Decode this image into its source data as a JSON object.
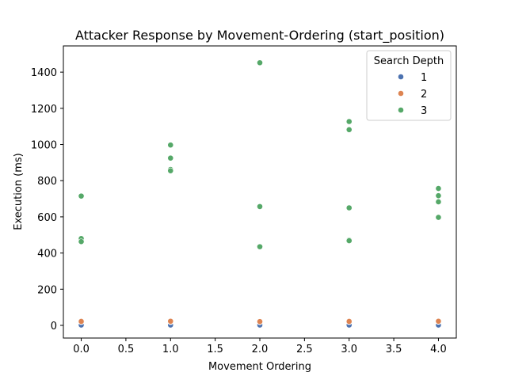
{
  "chart_data": {
    "type": "scatter",
    "title": "Attacker Response by Movement-Ordering (start_position)",
    "xlabel": "Movement Ordering",
    "ylabel": "Execution (ms)",
    "xlim": [
      -0.2,
      4.2
    ],
    "ylim": [
      -70,
      1545
    ],
    "xticks": [
      0.0,
      0.5,
      1.0,
      1.5,
      2.0,
      2.5,
      3.0,
      3.5,
      4.0
    ],
    "xtick_labels": [
      "0.0",
      "0.5",
      "1.0",
      "1.5",
      "2.0",
      "2.5",
      "3.0",
      "3.5",
      "4.0"
    ],
    "yticks": [
      0,
      200,
      400,
      600,
      800,
      1000,
      1200,
      1400
    ],
    "ytick_labels": [
      "0",
      "200",
      "400",
      "600",
      "800",
      "1000",
      "1200",
      "1400"
    ],
    "grid": false,
    "legend": {
      "title": "Search Depth",
      "placement": "top-right"
    },
    "series": [
      {
        "name": "1",
        "color": "#4c72b0",
        "points": [
          [
            0,
            1
          ],
          [
            0,
            2
          ],
          [
            1,
            1
          ],
          [
            1,
            2
          ],
          [
            2,
            1
          ],
          [
            2,
            2
          ],
          [
            3,
            1
          ],
          [
            3,
            2
          ],
          [
            4,
            1
          ],
          [
            4,
            2
          ]
        ]
      },
      {
        "name": "2",
        "color": "#dd8452",
        "points": [
          [
            0,
            20
          ],
          [
            0,
            22
          ],
          [
            1,
            20
          ],
          [
            1,
            23
          ],
          [
            2,
            19
          ],
          [
            2,
            21
          ],
          [
            3,
            20
          ],
          [
            3,
            22
          ],
          [
            4,
            21
          ],
          [
            4,
            23
          ]
        ]
      },
      {
        "name": "3",
        "color": "#55a868",
        "points": [
          [
            0,
            715
          ],
          [
            0,
            480
          ],
          [
            0,
            463
          ],
          [
            1,
            997
          ],
          [
            1,
            925
          ],
          [
            1,
            862
          ],
          [
            1,
            855
          ],
          [
            2,
            1452
          ],
          [
            2,
            657
          ],
          [
            2,
            435
          ],
          [
            3,
            1127
          ],
          [
            3,
            1082
          ],
          [
            3,
            650
          ],
          [
            3,
            472
          ],
          [
            3,
            468
          ],
          [
            4,
            757
          ],
          [
            4,
            717
          ],
          [
            4,
            683
          ],
          [
            4,
            597
          ]
        ]
      }
    ]
  }
}
